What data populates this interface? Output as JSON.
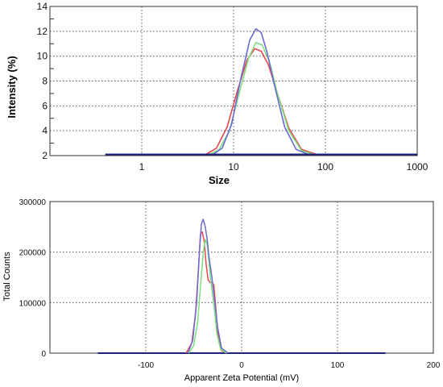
{
  "chart_data": [
    {
      "type": "line",
      "xlabel": "Size",
      "ylabel": "Intensity (%)",
      "xscale": "log",
      "xlim": [
        0.1,
        1000
      ],
      "ylim": [
        2,
        14
      ],
      "x_ticks": [
        1,
        10,
        100,
        1000
      ],
      "x_tick_labels": [
        "1",
        "10",
        "100",
        "1000"
      ],
      "y_ticks": [
        2,
        4,
        6,
        8,
        10,
        12,
        14
      ],
      "y_tick_labels": [
        "2",
        "4",
        "6",
        "8",
        "10",
        "12",
        "14"
      ],
      "grid": true,
      "baseline": {
        "x_from": 0.4,
        "x_to": 1000,
        "y": 2.1
      },
      "series": [
        {
          "color": "#e8474f",
          "x": [
            5.0,
            6.5,
            8.5,
            11.0,
            14.0,
            17.0,
            20.0,
            24.0,
            30.0,
            40.0,
            55.0,
            80.0
          ],
          "values": [
            2.1,
            2.6,
            4.3,
            7.2,
            9.7,
            10.6,
            10.4,
            9.3,
            7.0,
            4.2,
            2.5,
            2.1
          ]
        },
        {
          "color": "#7ede7e",
          "x": [
            5.5,
            7.0,
            9.0,
            11.5,
            14.5,
            17.5,
            20.5,
            24.5,
            30.0,
            40.0,
            55.0,
            75.0
          ],
          "values": [
            2.1,
            2.5,
            4.0,
            7.0,
            9.8,
            11.1,
            10.9,
            9.6,
            7.0,
            4.0,
            2.4,
            2.1
          ]
        },
        {
          "color": "#6b6bd0",
          "x": [
            6.0,
            7.5,
            9.5,
            12.0,
            15.0,
            17.5,
            20.0,
            23.0,
            28.0,
            36.0,
            48.0,
            65.0
          ],
          "values": [
            2.1,
            2.6,
            4.5,
            8.2,
            11.3,
            12.2,
            11.9,
            10.4,
            7.6,
            4.3,
            2.5,
            2.1
          ]
        }
      ]
    },
    {
      "type": "line",
      "xlabel": "Apparent Zeta Potential (mV)",
      "ylabel": "Total Counts",
      "xlim": [
        -200,
        200
      ],
      "ylim": [
        0,
        300000
      ],
      "x_ticks": [
        -100,
        0,
        100,
        200
      ],
      "x_tick_labels": [
        "-100",
        "0",
        "100",
        "200"
      ],
      "y_ticks": [
        0,
        100000,
        200000,
        300000
      ],
      "y_tick_labels": [
        "0",
        "100000",
        "200000",
        "300000"
      ],
      "grid": true,
      "baseline": {
        "x_from": -150,
        "x_to": 150,
        "y": 0
      },
      "series": [
        {
          "color": "#e8474f",
          "x": [
            -58,
            -52,
            -48,
            -45,
            -43,
            -41,
            -39,
            -37,
            -35,
            -33,
            -31,
            -29,
            -27,
            -25,
            -21,
            -16
          ],
          "values": [
            0,
            20000,
            80000,
            170000,
            235000,
            240000,
            220000,
            175000,
            145000,
            140000,
            140000,
            135000,
            90000,
            40000,
            5000,
            0
          ]
        },
        {
          "color": "#7ede7e",
          "x": [
            -55,
            -50,
            -46,
            -43,
            -40,
            -38,
            -36,
            -34,
            -32,
            -30,
            -28,
            -26,
            -22,
            -16
          ],
          "values": [
            0,
            15000,
            60000,
            130000,
            200000,
            225000,
            215000,
            180000,
            140000,
            110000,
            80000,
            40000,
            8000,
            0
          ]
        },
        {
          "color": "#6b6bd0",
          "x": [
            -56,
            -51,
            -47,
            -44,
            -42,
            -40,
            -38,
            -36,
            -34,
            -31,
            -28,
            -25,
            -21,
            -14
          ],
          "values": [
            0,
            25000,
            100000,
            200000,
            255000,
            265000,
            250000,
            225000,
            190000,
            150000,
            100000,
            50000,
            10000,
            0
          ]
        }
      ]
    }
  ]
}
